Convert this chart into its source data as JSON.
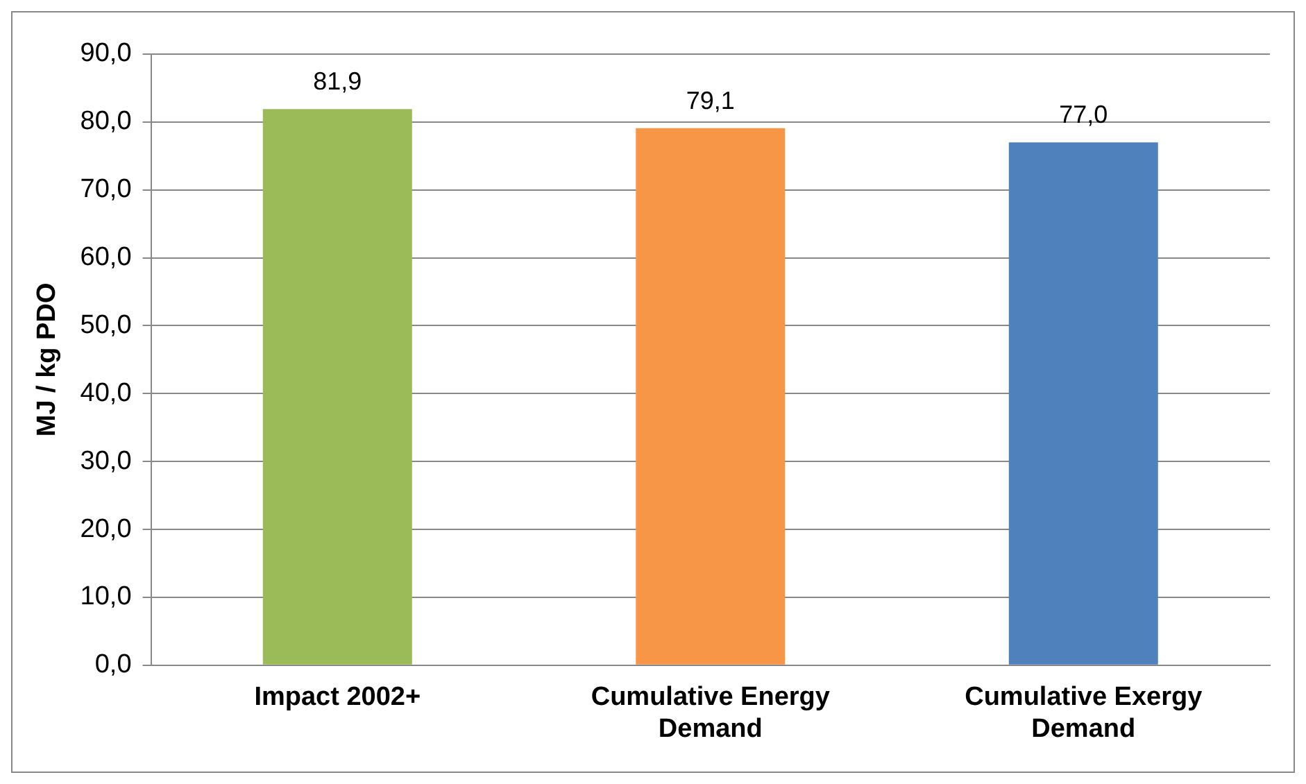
{
  "chart_data": {
    "type": "bar",
    "ylabel": "MJ / kg PDO",
    "categories": [
      "Impact 2002+",
      "Cumulative Energy Demand",
      "Cumulative Exergy Demand"
    ],
    "values": [
      81.9,
      79.1,
      77.0
    ],
    "colors": [
      "#9bbb59",
      "#f79646",
      "#4f81bd"
    ],
    "value_labels": [
      "81,9",
      "79,1",
      "77,0"
    ],
    "ylim": [
      0,
      90
    ],
    "yticks": [
      {
        "value": 0,
        "label": "0,0"
      },
      {
        "value": 10,
        "label": "10,0"
      },
      {
        "value": 20,
        "label": "20,0"
      },
      {
        "value": 30,
        "label": "30,0"
      },
      {
        "value": 40,
        "label": "40,0"
      },
      {
        "value": 50,
        "label": "50,0"
      },
      {
        "value": 60,
        "label": "60,0"
      },
      {
        "value": 70,
        "label": "70,0"
      },
      {
        "value": 80,
        "label": "80,0"
      },
      {
        "value": 90,
        "label": "90,0"
      }
    ],
    "grid": "y"
  }
}
